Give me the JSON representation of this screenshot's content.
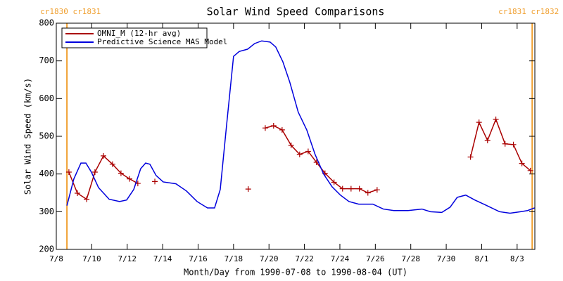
{
  "chart_data": {
    "type": "line",
    "title": "Solar Wind Speed Comparisons",
    "x_label": "Month/Day from 1990-07-08 to 1990-08-04 (UT)",
    "y_label": "Solar Wind Speed (km/s)",
    "xlim": [
      0,
      27
    ],
    "ylim": [
      200,
      800
    ],
    "yticks": [
      200,
      300,
      400,
      500,
      600,
      700,
      800
    ],
    "xticks": [
      {
        "value": 0,
        "label": "7/8"
      },
      {
        "value": 2,
        "label": "7/10"
      },
      {
        "value": 4,
        "label": "7/12"
      },
      {
        "value": 6,
        "label": "7/14"
      },
      {
        "value": 8,
        "label": "7/16"
      },
      {
        "value": 10,
        "label": "7/18"
      },
      {
        "value": 12,
        "label": "7/20"
      },
      {
        "value": 14,
        "label": "7/22"
      },
      {
        "value": 16,
        "label": "7/24"
      },
      {
        "value": 18,
        "label": "7/26"
      },
      {
        "value": 20,
        "label": "7/28"
      },
      {
        "value": 22,
        "label": "7/30"
      },
      {
        "value": 24,
        "label": "8/1"
      },
      {
        "value": 26,
        "label": "8/3"
      }
    ],
    "cr_boundaries": [
      {
        "x": 0.6,
        "label": "cr1830 cr1831",
        "color": "#f0a030"
      },
      {
        "x": 26.85,
        "label": "cr1831 cr1832",
        "color": "#f0a030"
      }
    ],
    "legend": "upper left",
    "series": [
      {
        "name": "OMNI_M (12-hr avg)",
        "color": "#aa0000",
        "marker": "+",
        "x": [
          0.71,
          1.19,
          1.71,
          2.18,
          2.66,
          3.17,
          3.65,
          4.13,
          4.6,
          null,
          5.56,
          null,
          10.83,
          null,
          11.79,
          12.26,
          12.74,
          13.25,
          13.73,
          14.21,
          14.68,
          15.16,
          15.67,
          16.15,
          16.63,
          17.1,
          17.58,
          18.1,
          null,
          23.37,
          23.85,
          24.33,
          24.8,
          25.32,
          25.79,
          26.27,
          26.75
        ],
        "values": [
          405,
          349,
          333,
          405,
          448,
          426,
          402,
          387,
          375,
          null,
          380,
          null,
          360,
          null,
          522,
          528,
          517,
          476,
          452,
          460,
          431,
          402,
          378,
          361,
          361,
          361,
          350,
          358,
          null,
          445,
          537,
          489,
          545,
          480,
          478,
          428,
          409
        ]
      },
      {
        "name": "Predictive Science MAS Model",
        "color": "#0000dd",
        "x": [
          0.6,
          0.99,
          1.39,
          1.67,
          1.98,
          2.38,
          2.98,
          3.57,
          3.97,
          4.37,
          4.76,
          5.04,
          5.28,
          5.63,
          6.03,
          6.75,
          7.34,
          7.94,
          8.53,
          8.93,
          9.25,
          9.6,
          10.0,
          10.32,
          10.79,
          11.19,
          11.59,
          12.06,
          12.38,
          12.78,
          13.17,
          13.65,
          14.13,
          14.6,
          15.08,
          15.56,
          16.03,
          16.51,
          17.06,
          17.86,
          18.45,
          19.05,
          19.84,
          20.63,
          21.11,
          21.75,
          22.22,
          22.62,
          23.1,
          23.61,
          24.21,
          25.0,
          25.6,
          26.19,
          26.59,
          26.98
        ],
        "values": [
          316,
          387,
          429,
          429,
          405,
          364,
          333,
          327,
          331,
          359,
          414,
          429,
          426,
          396,
          379,
          374,
          355,
          327,
          310,
          310,
          359,
          526,
          712,
          725,
          731,
          746,
          753,
          750,
          737,
          698,
          644,
          564,
          517,
          452,
          400,
          366,
          344,
          327,
          320,
          320,
          307,
          303,
          303,
          307,
          300,
          298,
          312,
          338,
          344,
          331,
          318,
          300,
          296,
          300,
          303,
          310
        ]
      }
    ]
  }
}
